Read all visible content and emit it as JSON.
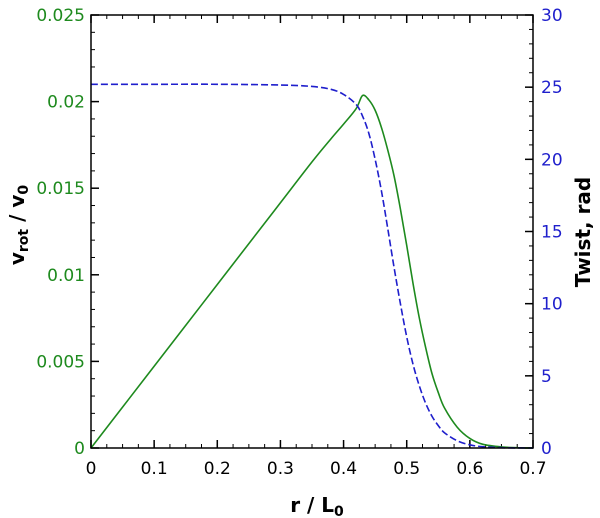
{
  "chart_data": {
    "type": "line",
    "x_axis": {
      "label_main": "r / L",
      "label_sub": "0",
      "range": [
        0,
        0.7
      ],
      "ticks": [
        0,
        0.1,
        0.2,
        0.3,
        0.4,
        0.5,
        0.6,
        0.7
      ],
      "tick_labels": [
        "0",
        "0.1",
        "0.2",
        "0.3",
        "0.4",
        "0.5",
        "0.6",
        "0.7"
      ]
    },
    "y_left": {
      "label_v1": "v",
      "label_sub1": "rot",
      "label_mid": " / v",
      "label_sub2": "0",
      "range": [
        0,
        0.025
      ],
      "ticks": [
        0,
        0.005,
        0.01,
        0.015,
        0.02,
        0.025
      ],
      "tick_labels": [
        "0",
        "0.005",
        "0.01",
        "0.015",
        "0.02",
        "0.025"
      ],
      "color": "#1e8a1e"
    },
    "y_right": {
      "label": "Twist, rad",
      "range": [
        0,
        30
      ],
      "ticks": [
        0,
        5,
        10,
        15,
        20,
        25,
        30
      ],
      "tick_labels": [
        "0",
        "5",
        "10",
        "15",
        "20",
        "25",
        "30"
      ],
      "color": "#1f1fcc"
    },
    "grid": false,
    "series": [
      {
        "axis": "left",
        "style": "solid",
        "color": "#1e8a1e",
        "x": [
          0,
          0.05,
          0.1,
          0.15,
          0.2,
          0.25,
          0.3,
          0.35,
          0.38,
          0.4,
          0.42,
          0.43,
          0.44,
          0.45,
          0.46,
          0.47,
          0.48,
          0.49,
          0.5,
          0.51,
          0.52,
          0.53,
          0.54,
          0.55,
          0.56,
          0.58,
          0.6,
          0.62,
          0.65,
          0.68,
          0.7
        ],
        "y": [
          0,
          0.00236,
          0.00472,
          0.00708,
          0.00944,
          0.0118,
          0.01416,
          0.01652,
          0.01785,
          0.0187,
          0.0196,
          0.02035,
          0.0201,
          0.0195,
          0.0185,
          0.0172,
          0.0157,
          0.0138,
          0.0117,
          0.0095,
          0.0075,
          0.0058,
          0.0043,
          0.0032,
          0.0023,
          0.0012,
          0.00055,
          0.00022,
          6e-05,
          1e-05,
          0
        ]
      },
      {
        "axis": "right",
        "style": "dashed",
        "color": "#1f1fcc",
        "x": [
          0,
          0.1,
          0.2,
          0.3,
          0.35,
          0.38,
          0.4,
          0.42,
          0.43,
          0.44,
          0.45,
          0.46,
          0.47,
          0.48,
          0.49,
          0.5,
          0.51,
          0.52,
          0.53,
          0.54,
          0.55,
          0.56,
          0.58,
          0.6,
          0.62,
          0.65,
          0.68,
          0.7
        ],
        "y": [
          25.2,
          25.2,
          25.2,
          25.15,
          25.05,
          24.85,
          24.5,
          23.8,
          23.0,
          21.8,
          20.0,
          17.8,
          15.2,
          12.5,
          10.0,
          7.7,
          5.8,
          4.3,
          3.1,
          2.2,
          1.55,
          1.05,
          0.5,
          0.22,
          0.09,
          0.02,
          0.003,
          0
        ]
      }
    ]
  }
}
